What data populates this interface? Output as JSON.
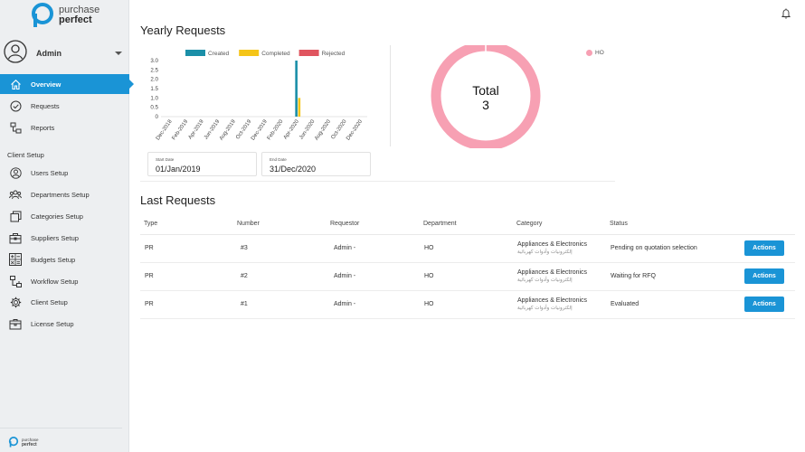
{
  "brand": {
    "line1": "purchase",
    "line2": "perfect"
  },
  "user": {
    "name": "Admin"
  },
  "nav": {
    "main": [
      {
        "label": "Overview",
        "icon": "home-icon",
        "active": true
      },
      {
        "label": "Requests",
        "icon": "check-circle-icon"
      },
      {
        "label": "Reports",
        "icon": "reports-icon"
      }
    ],
    "section_label": "Client Setup",
    "setup": [
      {
        "label": "Users Setup",
        "icon": "user-icon"
      },
      {
        "label": "Departments Setup",
        "icon": "users-icon"
      },
      {
        "label": "Categories Setup",
        "icon": "categories-icon"
      },
      {
        "label": "Suppliers Setup",
        "icon": "briefcase-icon"
      },
      {
        "label": "Budgets Setup",
        "icon": "calculator-icon"
      },
      {
        "label": "Workflow Setup",
        "icon": "workflow-icon"
      },
      {
        "label": "Client Setup",
        "icon": "gear-icon"
      },
      {
        "label": "License Setup",
        "icon": "license-icon"
      }
    ]
  },
  "yearly": {
    "title": "Yearly Requests",
    "start_label": "Start Date",
    "start_value": "01/Jan/2019",
    "end_label": "End Date",
    "end_value": "31/Dec/2020",
    "donut": {
      "total_label": "Total",
      "total_value": "3",
      "legend": "HO",
      "color": "#f7a0b3"
    }
  },
  "chart_data": {
    "type": "bar",
    "categories": [
      "Dec-2018",
      "Feb-2019",
      "Apr-2019",
      "Jun-2019",
      "Aug-2019",
      "Oct-2019",
      "Dec-2019",
      "Feb-2020",
      "Apr-2020",
      "Jun-2020",
      "Aug-2020",
      "Oct-2020",
      "Dec-2020"
    ],
    "series": [
      {
        "name": "Created",
        "color": "#1b8fa8",
        "values": [
          0,
          0,
          0,
          0,
          0,
          0,
          0,
          3,
          0,
          0,
          0,
          0,
          0
        ]
      },
      {
        "name": "Completed",
        "color": "#f5c518",
        "values": [
          0,
          0,
          0,
          0,
          0,
          0,
          0,
          1,
          0,
          0,
          0,
          0,
          0
        ]
      },
      {
        "name": "Rejected",
        "color": "#e0555f",
        "values": [
          0,
          0,
          0,
          0,
          0,
          0,
          0,
          0,
          0,
          0,
          0,
          0,
          0
        ]
      }
    ],
    "yticks": [
      "3.0",
      "2.5",
      "2.0",
      "1.5",
      "1.0",
      "0.5",
      "0"
    ],
    "ylim": [
      0,
      3
    ],
    "legend": "top"
  },
  "last": {
    "title": "Last Requests",
    "headers": [
      "Type",
      "Number",
      "Requestor",
      "Department",
      "Category",
      "Status"
    ],
    "rows": [
      {
        "type": "PR",
        "number": "#3",
        "requestor": "Admin -",
        "department": "HO",
        "category": "Appliances & Electronics",
        "category_ar": "إلكترونيات وأدوات كهربائية",
        "status": "Pending on quotation selection",
        "action": "Actions"
      },
      {
        "type": "PR",
        "number": "#2",
        "requestor": "Admin -",
        "department": "HO",
        "category": "Appliances & Electronics",
        "category_ar": "إلكترونيات وأدوات كهربائية",
        "status": "Waiting for RFQ",
        "action": "Actions"
      },
      {
        "type": "PR",
        "number": "#1",
        "requestor": "Admin -",
        "department": "HO",
        "category": "Appliances & Electronics",
        "category_ar": "إلكترونيات وأدوات كهربائية",
        "status": "Evaluated",
        "action": "Actions"
      }
    ]
  },
  "colors": {
    "accent": "#1a94d6",
    "sidebar_bg": "#edeff1"
  }
}
